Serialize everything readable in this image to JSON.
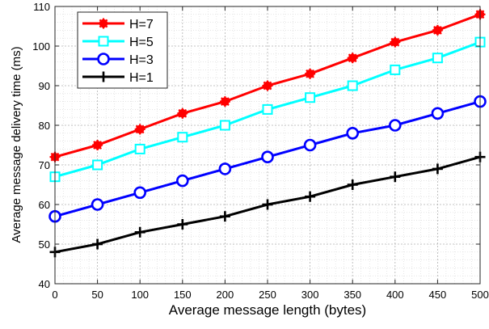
{
  "chart_data": {
    "type": "line",
    "title": "",
    "xlabel": "Average message length (bytes)",
    "ylabel": "Average message delivery time (ms)",
    "xlim": [
      0,
      500
    ],
    "ylim": [
      40,
      110
    ],
    "xticks": [
      0,
      50,
      100,
      150,
      200,
      250,
      300,
      350,
      400,
      450,
      500
    ],
    "yticks": [
      40,
      50,
      60,
      70,
      80,
      90,
      100,
      110
    ],
    "grid": true,
    "legend_position": "top-left",
    "x": [
      0,
      50,
      100,
      150,
      200,
      250,
      300,
      350,
      400,
      450,
      500
    ],
    "series": [
      {
        "name": "H=7",
        "color": "#ff0000",
        "marker": "asterisk-filled",
        "values": [
          72,
          75,
          79,
          83,
          86,
          90,
          93,
          97,
          101,
          104,
          108
        ]
      },
      {
        "name": "H=5",
        "color": "#00ffff",
        "marker": "square-open",
        "values": [
          67,
          70,
          74,
          77,
          80,
          84,
          87,
          90,
          94,
          97,
          101
        ]
      },
      {
        "name": "H=3",
        "color": "#0000ff",
        "marker": "circle-open",
        "values": [
          57,
          60,
          63,
          66,
          69,
          72,
          75,
          78,
          80,
          83,
          86
        ]
      },
      {
        "name": "H=1",
        "color": "#000000",
        "marker": "plus",
        "values": [
          48,
          50,
          53,
          55,
          57,
          60,
          62,
          65,
          67,
          69,
          72
        ]
      }
    ]
  }
}
